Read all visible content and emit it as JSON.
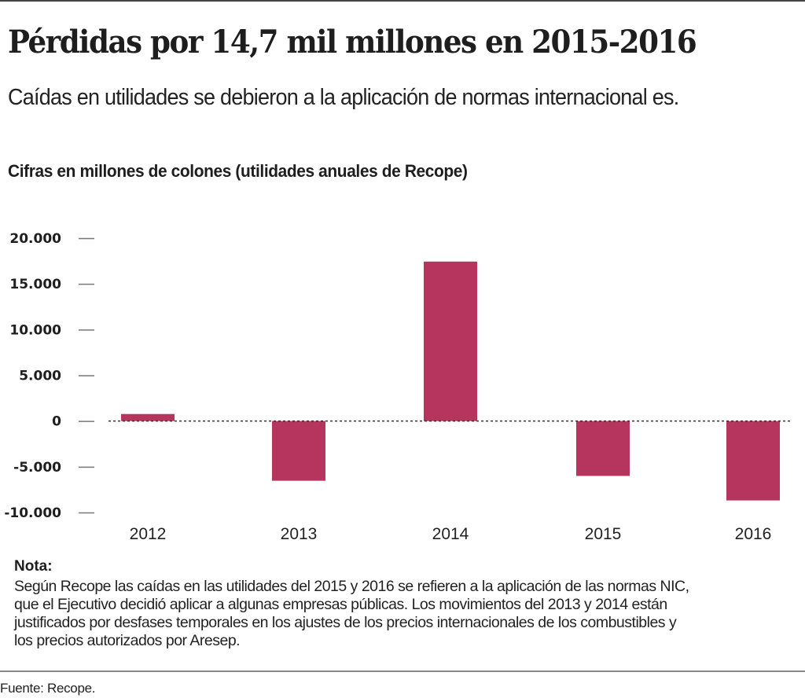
{
  "header": {
    "title": "Pérdidas por 14,7 mil millones en 2015-2016",
    "subtitle": "Caídas en utilidades se debieron a la aplicación de normas internacional es."
  },
  "chart_data": {
    "type": "bar",
    "title": "Cifras en millones de colones (utilidades anuales de Recope)",
    "xlabel": "",
    "ylabel": "",
    "categories": [
      "2012",
      "2013",
      "2014",
      "2015",
      "2016"
    ],
    "values": [
      770,
      -6530,
      17440,
      -6000,
      -8680
    ],
    "ylim": [
      -10000,
      20000
    ],
    "yticks": [
      20000,
      15000,
      10000,
      5000,
      0,
      -5000,
      -10000
    ],
    "ytick_labels": [
      "20.000",
      "15.000",
      "10.000",
      "5.000",
      "0",
      "-5.000",
      "-10.000"
    ],
    "bar_color": "#b5355f",
    "zero_line": "dotted",
    "grid": false,
    "legend": "none"
  },
  "note": {
    "heading": "Nota:",
    "lines": [
      "Según Recope las caídas en las utilidades del 2015 y 2016 se refieren a la aplicación de las normas NIC,",
      "que el Ejecutivo decidió aplicar a algunas empresas públicas.  Los movimientos del 2013 y 2014 están",
      "justificados por desfases temporales en los ajustes de los precios internacionales de los combustibles y",
      "los precios autorizados por Aresep."
    ]
  },
  "source": "Fuente: Recope."
}
